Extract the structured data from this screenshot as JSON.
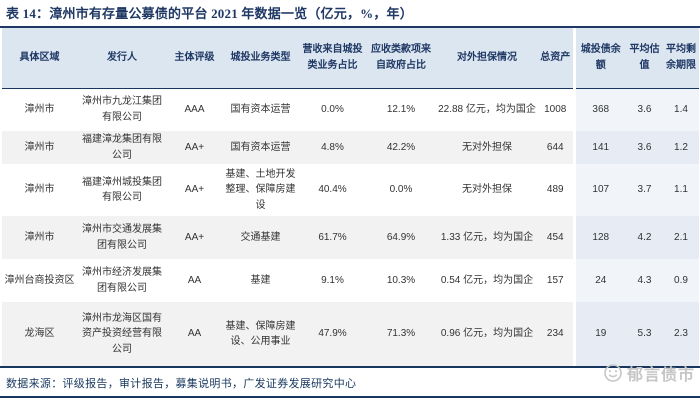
{
  "title": "表 14：漳州市有存量公募债的平台 2021 年数据一览（亿元，%，年）",
  "table": {
    "columns": [
      "具体区域",
      "发行人",
      "主体评级",
      "城投业务类型",
      "营收来自城投类业务占比",
      "应收类款项来自政府占比",
      "对外担保情况",
      "总资产",
      "城投债余额",
      "平均估值",
      "平均剩余期限"
    ],
    "rows": [
      [
        "漳州市",
        "漳州市九龙江集团有限公司",
        "AAA",
        "国有资本运营",
        "0.0%",
        "12.1%",
        "22.88 亿元，均为国企",
        "1008",
        "368",
        "3.6",
        "1.4"
      ],
      [
        "漳州市",
        "福建漳龙集团有限公司",
        "AA+",
        "国有资本运营",
        "4.8%",
        "42.2%",
        "无对外担保",
        "644",
        "141",
        "3.6",
        "1.2"
      ],
      [
        "漳州市",
        "福建漳州城投集团有限公司",
        "AA+",
        "基建、土地开发整理、保障房建设",
        "40.4%",
        "0.0%",
        "无对外担保",
        "489",
        "107",
        "3.7",
        "1.1"
      ],
      [
        "漳州市",
        "漳州市交通发展集团有限公司",
        "AA+",
        "交通基建",
        "61.7%",
        "64.9%",
        "1.33 亿元，均为国企",
        "454",
        "128",
        "4.2",
        "2.1"
      ],
      [
        "漳州台商投资区",
        "漳州市经济发展集团有限公司",
        "AA",
        "基建",
        "9.1%",
        "10.3%",
        "0.54 亿元，均为国企",
        "157",
        "24",
        "4.3",
        "0.9"
      ],
      [
        "龙海区",
        "漳州市龙海区国有资产投资经营有限公司",
        "AA",
        "基建、保障房建设、公用事业",
        "47.9%",
        "71.3%",
        "0.96 亿元，均为国企",
        "234",
        "19",
        "5.3",
        "2.3"
      ]
    ]
  },
  "footer": {
    "source_text": "数据来源：评级报告，审计报告，募集说明书，广发证券发展研究中心"
  },
  "watermark": {
    "label": "郁言债市",
    "icon": "smiley-face-icon"
  },
  "colors": {
    "accent_navy": "#1F3864",
    "rule_navy": "#17375E",
    "header_bg": "#DCE6F1",
    "row_alt_bg": "#F2F2F2",
    "band_bg_light": "#F1F5FA",
    "band_bg_dark": "#E7ECF4",
    "watermark_gray": "#C6C6C6",
    "body_text": "#333333"
  }
}
